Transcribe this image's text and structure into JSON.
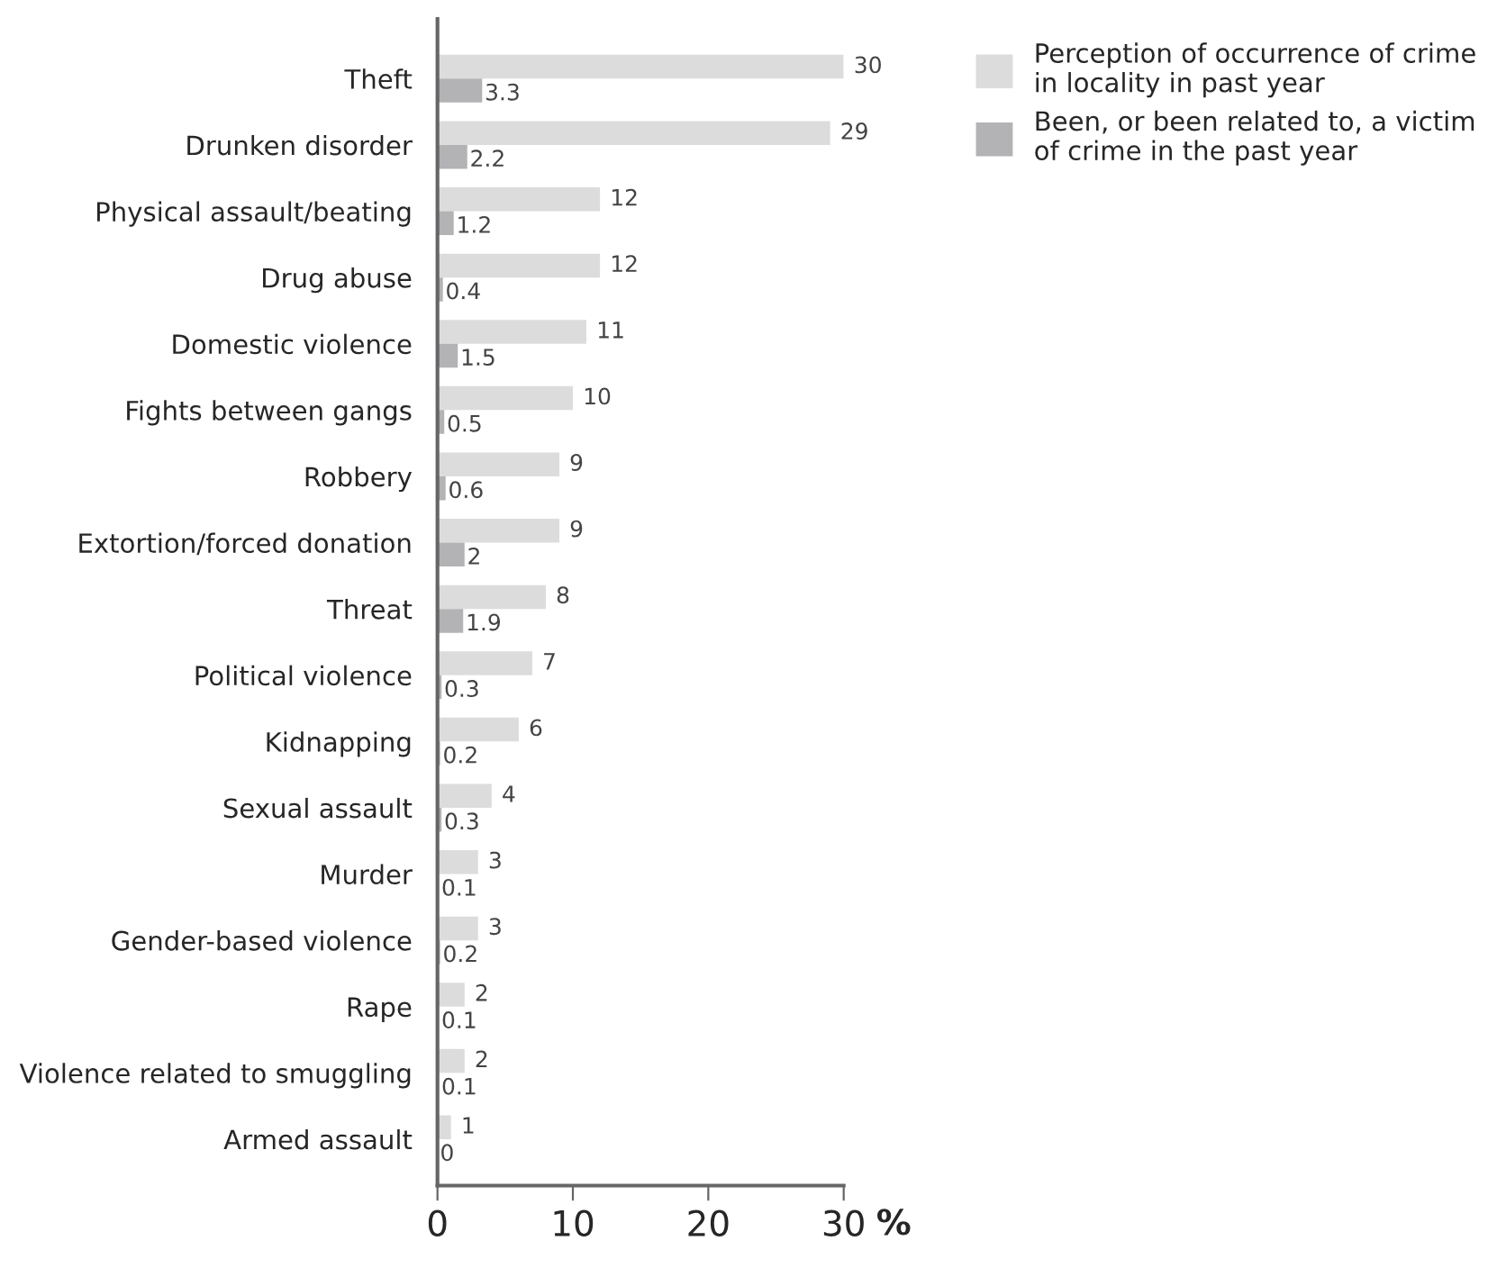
{
  "chart_data": {
    "type": "bar",
    "orientation": "horizontal",
    "categories": [
      "Theft",
      "Drunken disorder",
      "Physical assault/beating",
      "Drug abuse",
      "Domestic violence",
      "Fights between gangs",
      "Robbery",
      "Extortion/forced donation",
      "Threat",
      "Political violence",
      "Kidnapping",
      "Sexual assault",
      "Murder",
      "Gender-based violence",
      "Rape",
      "Violence related to smuggling",
      "Armed assault"
    ],
    "series": [
      {
        "name": "Perception of occurrence of crime\nin locality in past year",
        "color": "#dcdcdd",
        "values": [
          30,
          29,
          12,
          12,
          11,
          10,
          9,
          9,
          8,
          7,
          6,
          4,
          3,
          3,
          2,
          2,
          1
        ]
      },
      {
        "name": "Been, or been related to, a victim\nof crime in the past year",
        "color": "#b3b3b6",
        "values": [
          3.3,
          2.2,
          1.2,
          0.4,
          1.5,
          0.5,
          0.6,
          2,
          1.9,
          0.3,
          0.2,
          0.3,
          0.1,
          0.2,
          0.1,
          0.1,
          0
        ]
      }
    ],
    "xlim": [
      0,
      30
    ],
    "xticks": [
      0,
      10,
      20,
      30
    ],
    "xlabel": "%",
    "data_labels": true,
    "legend": "top right",
    "grid": false
  }
}
